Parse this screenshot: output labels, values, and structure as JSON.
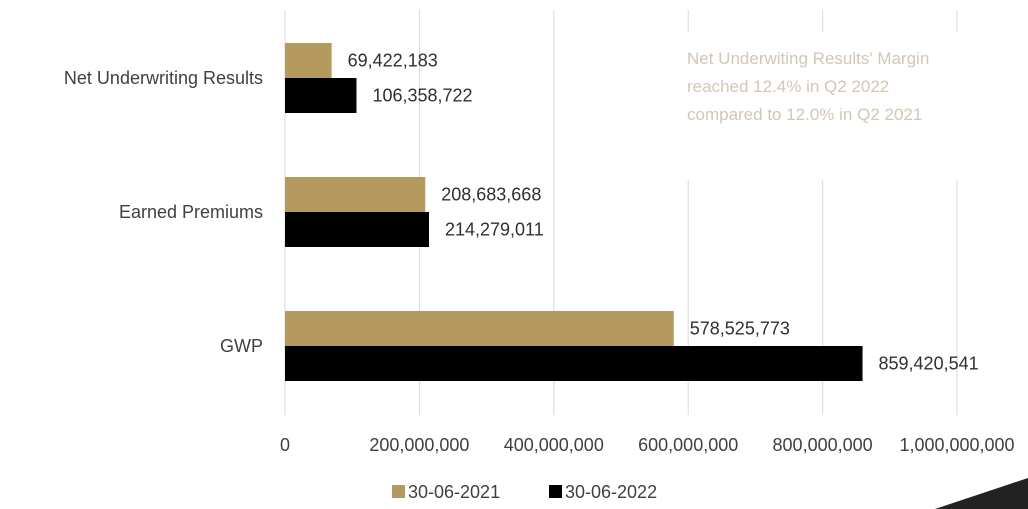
{
  "chart_data": {
    "type": "bar",
    "orientation": "horizontal",
    "categories": [
      "Net Underwriting Results",
      "Earned Premiums",
      "GWP"
    ],
    "series": [
      {
        "name": "30-06-2021",
        "values": [
          69422183,
          208683668,
          578525773
        ],
        "value_labels": [
          "69,422,183",
          "208,683,668",
          "578,525,773"
        ]
      },
      {
        "name": "30-06-2022",
        "values": [
          106358722,
          214279011,
          859420541
        ],
        "value_labels": [
          "106,358,722",
          "214,279,011",
          "859,420,541"
        ]
      }
    ],
    "x_ticks": [
      0,
      200000000,
      400000000,
      600000000,
      800000000,
      1000000000
    ],
    "x_tick_labels": [
      "0",
      "200,000,000",
      "400,000,000",
      "600,000,000",
      "800,000,000",
      "1,000,000,000"
    ],
    "xlim": [
      0,
      1000000000
    ],
    "grid": "vertical",
    "legend": "bottom",
    "annotation": [
      "Net Underwiting Results' Margin",
      "reached 12.4% in Q2 2022",
      "compared to 12.0% in Q2 2021"
    ],
    "colors": {
      "series_0": "#b49a5e",
      "series_1": "#000000",
      "grid": "#d9d9d9"
    }
  }
}
